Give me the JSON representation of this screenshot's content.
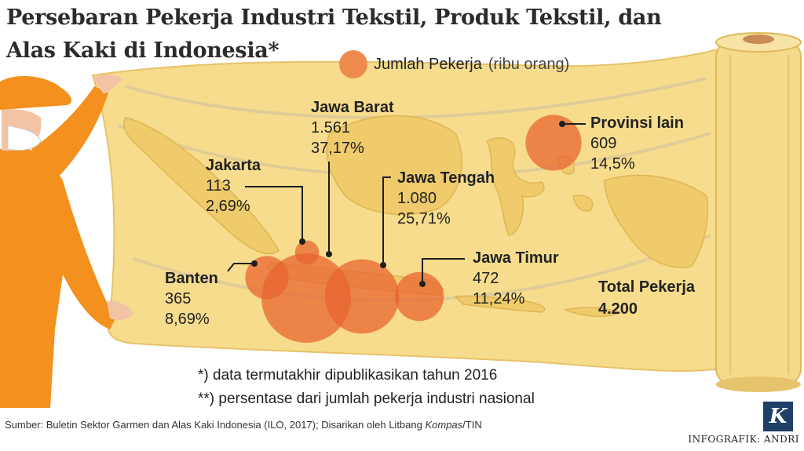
{
  "title": {
    "line1": "Persebaran Pekerja Industri Tekstil, Produk Tekstil, dan",
    "line2": "Alas Kaki di Indonesia*"
  },
  "legend": {
    "label": "Jumlah Pekerja",
    "unit": "(ribu orang)"
  },
  "regions": [
    {
      "key": "jakarta",
      "name": "Jakarta",
      "value": "113",
      "pct": "2,69%",
      "workers_thousand": 113
    },
    {
      "key": "jawa_barat",
      "name": "Jawa Barat",
      "value": "1.561",
      "pct": "37,17%",
      "workers_thousand": 1561
    },
    {
      "key": "jawa_tengah",
      "name": "Jawa Tengah",
      "value": "1.080",
      "pct": "25,71%",
      "workers_thousand": 1080
    },
    {
      "key": "jawa_timur",
      "name": "Jawa Timur",
      "value": "472",
      "pct": "11,24%",
      "workers_thousand": 472
    },
    {
      "key": "banten",
      "name": "Banten",
      "value": "365",
      "pct": "8,69%",
      "workers_thousand": 365
    },
    {
      "key": "provinsi_lain",
      "name": "Provinsi lain",
      "value": "609",
      "pct": "14,5%",
      "workers_thousand": 609
    }
  ],
  "total": {
    "label": "Total Pekerja",
    "value": "4.200"
  },
  "notes": {
    "note1": "*) data termutakhir dipublikasikan tahun 2016",
    "note2": "**) persentase dari jumlah pekerja industri nasional"
  },
  "source": {
    "prefix": "Sumber: Buletin Sektor Garmen dan Alas Kaki Indonesia (ILO, 2017); Disarikan oleh Litbang ",
    "italic": "Kompas",
    "suffix": "/TIN"
  },
  "credit": "INFOGRAFIK: ANDRI",
  "logo": "K",
  "colors": {
    "bubble": "#e8632e",
    "legend_bubble": "#ef8a4d",
    "parchment": "#f6dc8c",
    "land": "#efcb6c",
    "worker": "#f3901e"
  }
}
